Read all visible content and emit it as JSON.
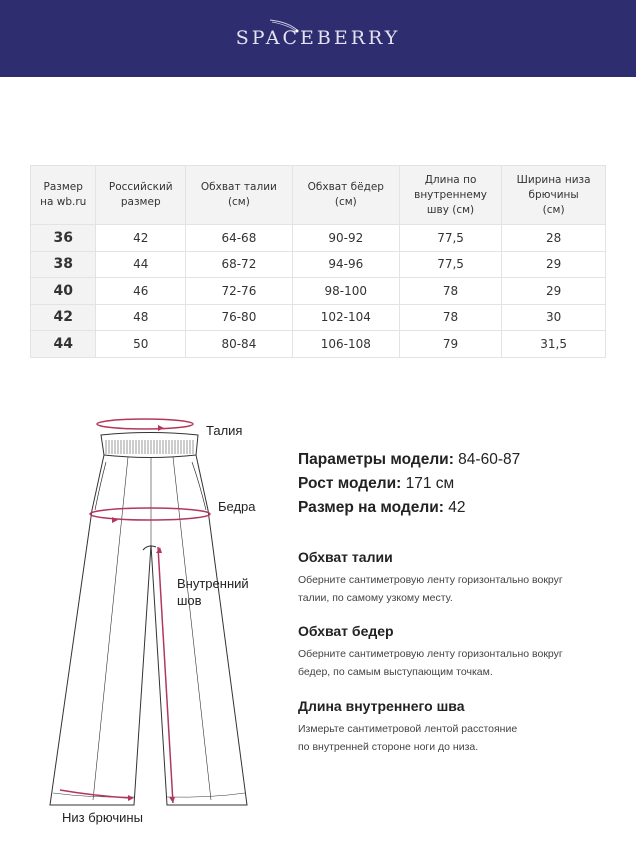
{
  "brand": {
    "logo": "SPACEBERRY",
    "color": "#2d2d6f"
  },
  "size_table": {
    "headers": [
      "Размер на wb.ru",
      "Российский размер",
      "Обхват талии (см)",
      "Обхват бёдер (см)",
      "Длина по внутреннему шву (см)",
      "Ширина низа брючины (см)"
    ],
    "header_lines": [
      [
        "Размер",
        "на wb.ru"
      ],
      [
        "Российский",
        "размер"
      ],
      [
        "Обхват талии",
        "(см)"
      ],
      [
        "Обхват бёдер",
        "(см)"
      ],
      [
        "Длина по",
        "внутреннему",
        "шву (см)"
      ],
      [
        "Ширина низа",
        "брючины",
        "(см)"
      ]
    ],
    "rows": [
      [
        "36",
        "42",
        "64-68",
        "90-92",
        "77,5",
        "28"
      ],
      [
        "38",
        "44",
        "68-72",
        "94-96",
        "77,5",
        "29"
      ],
      [
        "40",
        "46",
        "72-76",
        "98-100",
        "78",
        "29"
      ],
      [
        "42",
        "48",
        "76-80",
        "102-104",
        "78",
        "30"
      ],
      [
        "44",
        "50",
        "80-84",
        "106-108",
        "79",
        "31,5"
      ]
    ]
  },
  "diagram": {
    "labels": {
      "waist": "Талия",
      "hips": "Бедра",
      "inseam_1": "Внутренний",
      "inseam_2": "шов",
      "hem": "Низ брючины"
    },
    "accent": "#b3375c"
  },
  "model": {
    "params_label": "Параметры модели:",
    "params_value": "84-60-87",
    "height_label": "Рост модели:",
    "height_value": "171 см",
    "size_label": "Размер на модели:",
    "size_value": "42"
  },
  "instructions": [
    {
      "title": "Обхват талии",
      "lines": [
        "Оберните сантиметровую ленту горизонтально вокруг",
        "талии, по самому узкому месту."
      ]
    },
    {
      "title": "Обхват бедер",
      "lines": [
        "Оберните сантиметровую ленту горизонтально вокруг",
        "бедер, по самым выступающим точкам."
      ]
    },
    {
      "title": "Длина внутреннего шва",
      "lines": [
        "Измерьте сантиметровой лентой расстояние",
        "по внутренней стороне ноги до низа."
      ]
    }
  ]
}
